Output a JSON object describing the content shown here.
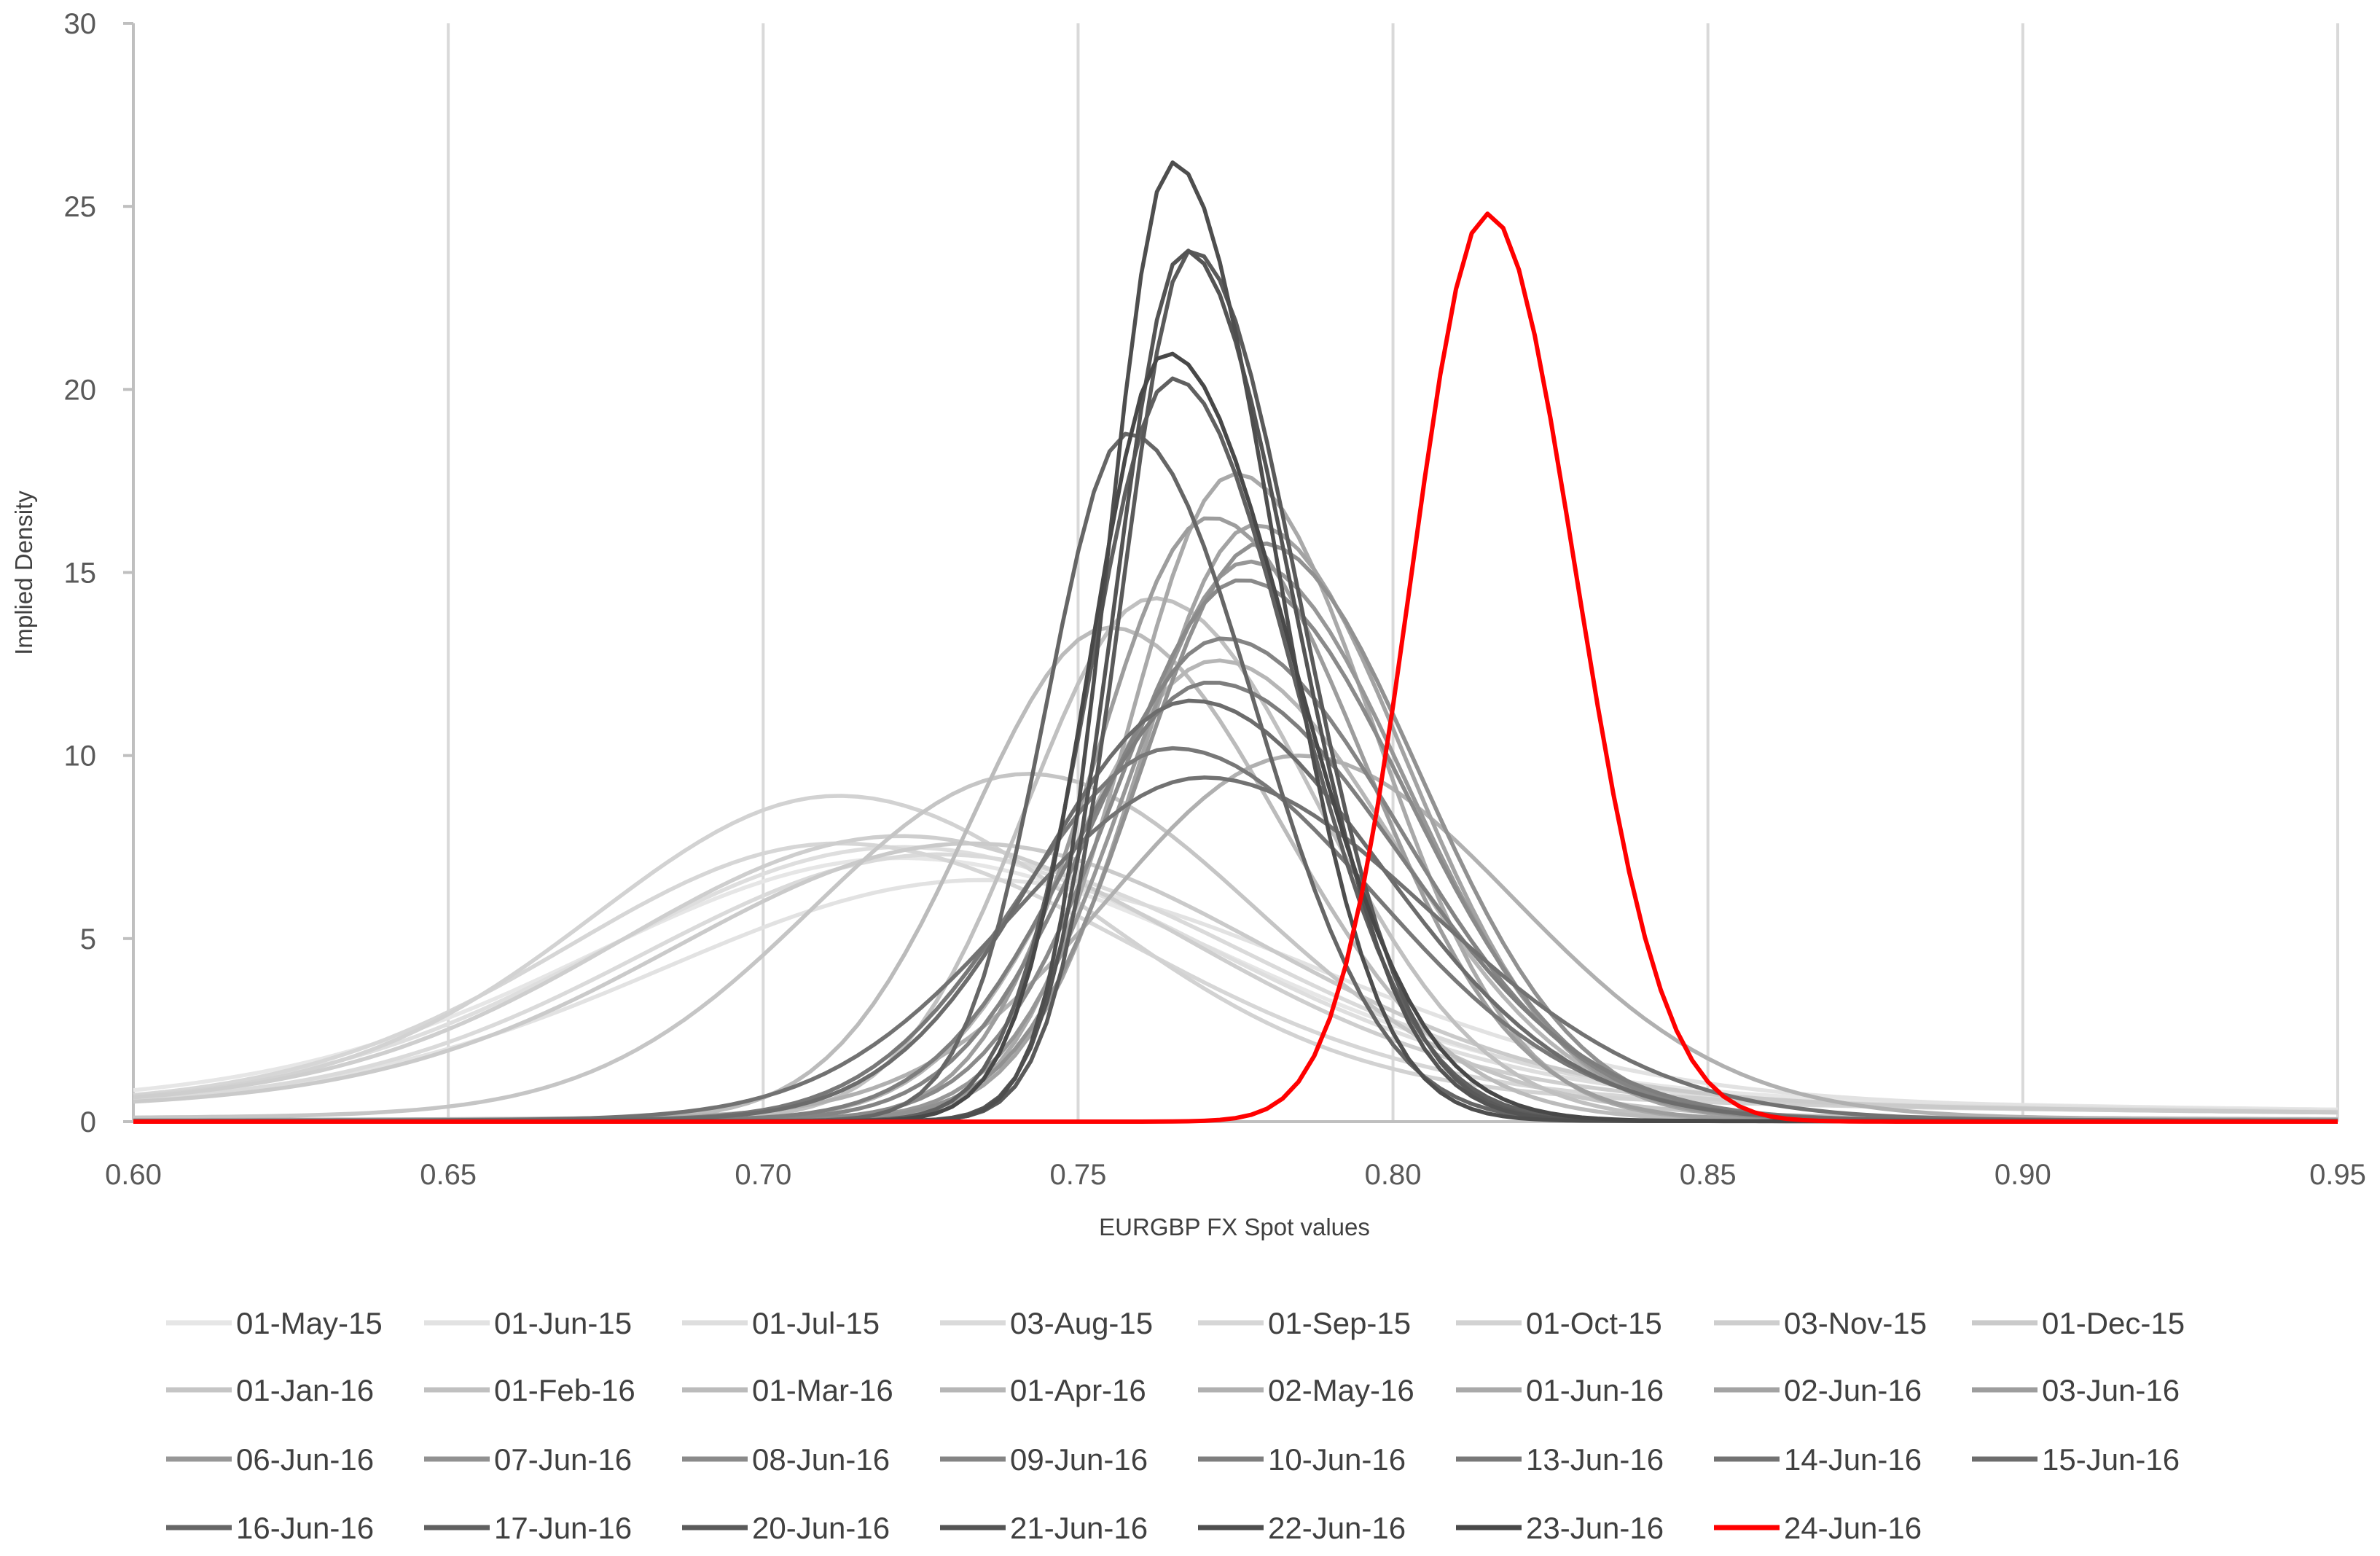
{
  "chart_data": {
    "type": "line",
    "title": "",
    "xlabel": "EURGBP FX Spot values",
    "ylabel": "Implied Density",
    "xlim": [
      0.6,
      0.95
    ],
    "ylim": [
      0,
      30
    ],
    "x_ticks": [
      "0.60",
      "0.65",
      "0.70",
      "0.75",
      "0.80",
      "0.85",
      "0.90",
      "0.95"
    ],
    "y_ticks": [
      "0",
      "5",
      "10",
      "15",
      "20",
      "25",
      "30"
    ],
    "grid": "vertical",
    "legend_position": "bottom",
    "series": [
      {
        "name": "01-May-15",
        "color": "#e6e6e6",
        "peak_x": 0.722,
        "peak_y": 7.2,
        "w_left": 0.048,
        "w_right": 0.05,
        "tail": 1.0
      },
      {
        "name": "01-Jun-15",
        "color": "#e2e2e2",
        "peak_x": 0.735,
        "peak_y": 6.6,
        "w_left": 0.05,
        "w_right": 0.052,
        "tail": 0.8
      },
      {
        "name": "01-Jul-15",
        "color": "#dedede",
        "peak_x": 0.722,
        "peak_y": 7.5,
        "w_left": 0.046,
        "w_right": 0.048,
        "tail": 0.9
      },
      {
        "name": "03-Aug-15",
        "color": "#dadada",
        "peak_x": 0.728,
        "peak_y": 7.3,
        "w_left": 0.046,
        "w_right": 0.048,
        "tail": 0.8
      },
      {
        "name": "01-Sep-15",
        "color": "#d6d6d6",
        "peak_x": 0.712,
        "peak_y": 7.6,
        "w_left": 0.042,
        "w_right": 0.046,
        "tail": 0.9
      },
      {
        "name": "01-Oct-15",
        "color": "#d2d2d2",
        "peak_x": 0.712,
        "peak_y": 8.9,
        "w_left": 0.038,
        "w_right": 0.04,
        "tail": 1.1
      },
      {
        "name": "03-Nov-15",
        "color": "#cecece",
        "peak_x": 0.722,
        "peak_y": 7.8,
        "w_left": 0.044,
        "w_right": 0.045,
        "tail": 0.9
      },
      {
        "name": "01-Dec-15",
        "color": "#cacaca",
        "peak_x": 0.733,
        "peak_y": 7.6,
        "w_left": 0.046,
        "w_right": 0.046,
        "tail": 0.8
      },
      {
        "name": "01-Jan-16",
        "color": "#c5c5c5",
        "peak_x": 0.742,
        "peak_y": 9.5,
        "w_left": 0.034,
        "w_right": 0.036,
        "tail": 0.3
      },
      {
        "name": "01-Feb-16",
        "color": "#c0c0c0",
        "peak_x": 0.762,
        "peak_y": 14.3,
        "w_left": 0.02,
        "w_right": 0.026,
        "tail": 0.1
      },
      {
        "name": "01-Mar-16",
        "color": "#bbbbbb",
        "peak_x": 0.755,
        "peak_y": 13.5,
        "w_left": 0.022,
        "w_right": 0.027,
        "tail": 0.1
      },
      {
        "name": "01-Apr-16",
        "color": "#b6b6b6",
        "peak_x": 0.772,
        "peak_y": 12.6,
        "w_left": 0.022,
        "w_right": 0.028,
        "tail": 0.1
      },
      {
        "name": "02-May-16",
        "color": "#b0b0b0",
        "peak_x": 0.785,
        "peak_y": 10.0,
        "w_left": 0.03,
        "w_right": 0.034,
        "tail": 0.2
      },
      {
        "name": "01-Jun-16",
        "color": "#a9a9a9",
        "peak_x": 0.775,
        "peak_y": 17.7,
        "w_left": 0.017,
        "w_right": 0.022,
        "tail": 0.1
      },
      {
        "name": "02-Jun-16",
        "color": "#a3a3a3",
        "peak_x": 0.778,
        "peak_y": 16.3,
        "w_left": 0.018,
        "w_right": 0.024,
        "tail": 0.1
      },
      {
        "name": "03-Jun-16",
        "color": "#9d9d9d",
        "peak_x": 0.771,
        "peak_y": 16.5,
        "w_left": 0.018,
        "w_right": 0.024,
        "tail": 0.1
      },
      {
        "name": "06-Jun-16",
        "color": "#979797",
        "peak_x": 0.777,
        "peak_y": 15.3,
        "w_left": 0.019,
        "w_right": 0.025,
        "tail": 0.1
      },
      {
        "name": "07-Jun-16",
        "color": "#919191",
        "peak_x": 0.779,
        "peak_y": 15.8,
        "w_left": 0.019,
        "w_right": 0.025,
        "tail": 0.1
      },
      {
        "name": "08-Jun-16",
        "color": "#8a8a8a",
        "peak_x": 0.776,
        "peak_y": 14.8,
        "w_left": 0.02,
        "w_right": 0.026,
        "tail": 0.1
      },
      {
        "name": "09-Jun-16",
        "color": "#848484",
        "peak_x": 0.773,
        "peak_y": 13.2,
        "w_left": 0.021,
        "w_right": 0.028,
        "tail": 0.1
      },
      {
        "name": "10-Jun-16",
        "color": "#7e7e7e",
        "peak_x": 0.771,
        "peak_y": 12.0,
        "w_left": 0.022,
        "w_right": 0.03,
        "tail": 0.1
      },
      {
        "name": "13-Jun-16",
        "color": "#787878",
        "peak_x": 0.765,
        "peak_y": 10.2,
        "w_left": 0.024,
        "w_right": 0.032,
        "tail": 0.1
      },
      {
        "name": "14-Jun-16",
        "color": "#727272",
        "peak_x": 0.77,
        "peak_y": 9.4,
        "w_left": 0.03,
        "w_right": 0.036,
        "tail": 0.1
      },
      {
        "name": "15-Jun-16",
        "color": "#6c6c6c",
        "peak_x": 0.768,
        "peak_y": 11.5,
        "w_left": 0.024,
        "w_right": 0.03,
        "tail": 0.1
      },
      {
        "name": "16-Jun-16",
        "color": "#666666",
        "peak_x": 0.758,
        "peak_y": 18.8,
        "w_left": 0.013,
        "w_right": 0.02,
        "tail": 0.05
      },
      {
        "name": "17-Jun-16",
        "color": "#606060",
        "peak_x": 0.765,
        "peak_y": 20.3,
        "w_left": 0.013,
        "w_right": 0.019,
        "tail": 0.05
      },
      {
        "name": "20-Jun-16",
        "color": "#5a5a5a",
        "peak_x": 0.768,
        "peak_y": 23.8,
        "w_left": 0.011,
        "w_right": 0.017,
        "tail": 0.05
      },
      {
        "name": "21-Jun-16",
        "color": "#545454",
        "peak_x": 0.767,
        "peak_y": 23.8,
        "w_left": 0.011,
        "w_right": 0.017,
        "tail": 0.05
      },
      {
        "name": "22-Jun-16",
        "color": "#4e4e4e",
        "peak_x": 0.765,
        "peak_y": 26.2,
        "w_left": 0.01,
        "w_right": 0.016,
        "tail": 0.05
      },
      {
        "name": "23-Jun-16",
        "color": "#484848",
        "peak_x": 0.764,
        "peak_y": 21.0,
        "w_left": 0.012,
        "w_right": 0.02,
        "tail": 0.05
      },
      {
        "name": "24-Jun-16",
        "color": "#ff0000",
        "peak_x": 0.815,
        "peak_y": 24.8,
        "w_left": 0.012,
        "w_right": 0.014,
        "tail": 0.0
      }
    ]
  }
}
